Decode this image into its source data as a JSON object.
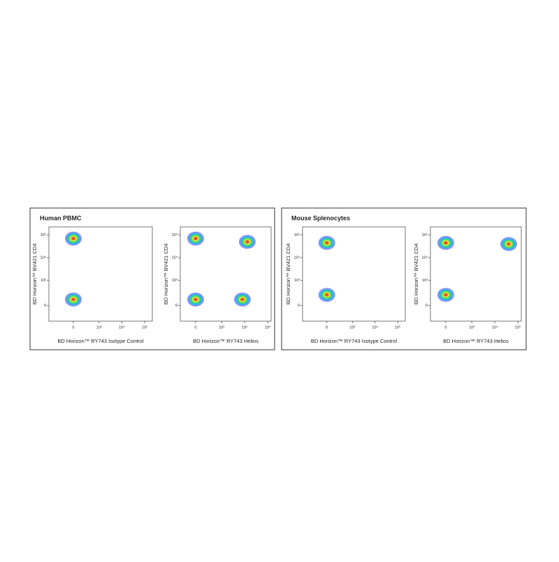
{
  "panels": [
    {
      "title": "Human PBMC"
    },
    {
      "title": "Mouse Splenocytes"
    }
  ],
  "chart_data": [
    {
      "type": "scatter",
      "scale": "biexponential",
      "xlabel": "BD Horizon™ RY743 Isotype Control",
      "ylabel": "BD Horizon™ BV421  CD4",
      "x": [
        0,
        0
      ],
      "values": [
        70000,
        100
      ],
      "xlim": [
        -875,
        217000
      ],
      "ylim": [
        -350,
        230000
      ],
      "xticks": [
        0,
        {
          "value": 1000,
          "label": "10³"
        },
        {
          "value": 10000,
          "label": "10⁴"
        },
        {
          "value": 100000,
          "label": "10⁵"
        }
      ],
      "yticks": [
        0,
        {
          "value": 1000,
          "label": "10³"
        },
        {
          "value": 10000,
          "label": "10⁴"
        },
        {
          "value": 100000,
          "label": "10⁵"
        }
      ]
    },
    {
      "type": "scatter",
      "scale": "biexponential",
      "xlabel": "BD Horizon™ RY743 Helios",
      "ylabel": "BD Horizon™ BV421  CD4",
      "x": [
        0,
        13000,
        0,
        8000
      ],
      "values": [
        70000,
        50000,
        100,
        100
      ],
      "xlim": [
        -330,
        140000
      ],
      "ylim": [
        -350,
        230000
      ],
      "xticks": [
        0,
        {
          "value": 1000,
          "label": "10³"
        },
        {
          "value": 10000,
          "label": "10⁴"
        },
        {
          "value": 100000,
          "label": "10⁵"
        }
      ],
      "yticks": [
        0,
        {
          "value": 1000,
          "label": "10³"
        },
        {
          "value": 10000,
          "label": "10⁴"
        },
        {
          "value": 100000,
          "label": "10⁵"
        }
      ]
    },
    {
      "type": "scatter",
      "scale": "biexponential",
      "xlabel": "BD Horizon™ RY743 Isotype Control",
      "ylabel": "BD Horizon™ BV421  CD4",
      "x": [
        0,
        0
      ],
      "values": [
        45000,
        200
      ],
      "xlim": [
        -875,
        217000
      ],
      "ylim": [
        -350,
        230000
      ],
      "xticks": [
        0,
        {
          "value": 1000,
          "label": "10³"
        },
        {
          "value": 10000,
          "label": "10⁴"
        },
        {
          "value": 100000,
          "label": "10⁵"
        }
      ],
      "yticks": [
        0,
        {
          "value": 1000,
          "label": "10³"
        },
        {
          "value": 10000,
          "label": "10⁴"
        },
        {
          "value": 100000,
          "label": "10⁵"
        }
      ]
    },
    {
      "type": "scatter",
      "scale": "biexponential",
      "xlabel": "BD Horizon™ RY743 Helios",
      "ylabel": "BD Horizon™ BV421  CD4",
      "x": [
        0,
        40000,
        0
      ],
      "values": [
        45000,
        40000,
        200
      ],
      "xlim": [
        -330,
        140000
      ],
      "ylim": [
        -350,
        230000
      ],
      "xticks": [
        0,
        {
          "value": 1000,
          "label": "10³"
        },
        {
          "value": 10000,
          "label": "10⁴"
        },
        {
          "value": 100000,
          "label": "10⁵"
        }
      ],
      "yticks": [
        0,
        {
          "value": 1000,
          "label": "10³"
        },
        {
          "value": 10000,
          "label": "10⁴"
        },
        {
          "value": 100000,
          "label": "10⁵"
        }
      ]
    }
  ]
}
